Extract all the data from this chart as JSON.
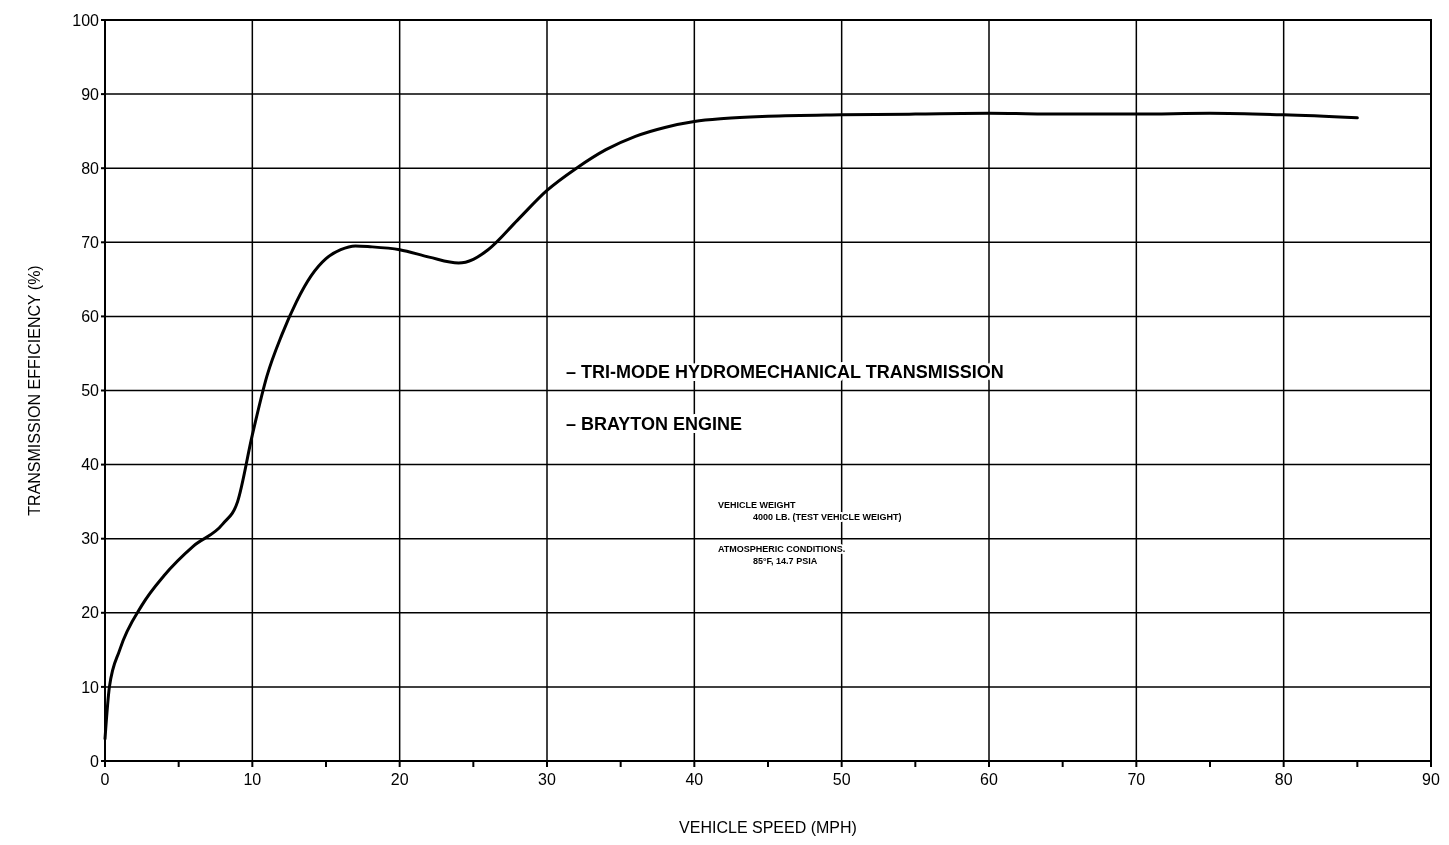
{
  "chart_data": {
    "type": "line",
    "xlabel": "VEHICLE SPEED (MPH)",
    "ylabel": "TRANSMISSION EFFICIENCY (%)",
    "xlim": [
      0,
      90
    ],
    "ylim": [
      0,
      100
    ],
    "xticks": [
      0,
      {
        "value": 5,
        "label": null
      },
      10,
      {
        "value": 15,
        "label": null
      },
      20,
      {
        "value": 25,
        "label": null
      },
      30,
      {
        "value": 35,
        "label": null
      },
      40,
      {
        "value": 45,
        "label": null
      },
      50,
      {
        "value": 55,
        "label": null
      },
      60,
      {
        "value": 65,
        "label": null
      },
      70,
      {
        "value": 75,
        "label": null
      },
      80,
      {
        "value": 85,
        "label": null
      },
      90
    ],
    "yticks": [
      0,
      10,
      20,
      30,
      40,
      50,
      60,
      70,
      80,
      90,
      100
    ],
    "grid": true,
    "line_style": "solid",
    "marker": "none",
    "annotations": [
      "– TRI-MODE HYDROMECHANICAL TRANSMISSION",
      "– BRAYTON ENGINE",
      "VEHICLE WEIGHT",
      "4000 LB. (TEST VEHICLE WEIGHT)",
      "ATMOSPHERIC CONDITIONS.",
      "85°F, 14.7 PSIA"
    ],
    "series": [
      {
        "color": "#000000",
        "x": [
          0,
          0.3,
          1,
          2.5,
          4,
          6,
          8,
          9,
          10,
          11,
          12,
          13,
          14,
          15,
          16,
          17,
          18,
          20,
          22,
          24,
          25,
          26,
          28,
          30,
          32,
          34,
          36,
          38,
          40,
          42,
          45,
          50,
          55,
          60,
          65,
          70,
          75,
          80,
          85
        ],
        "values": [
          3,
          10,
          15,
          21,
          25,
          29,
          32,
          35,
          44,
          52,
          57.5,
          62,
          65.5,
          67.8,
          69,
          69.5,
          69.4,
          69,
          68,
          67.2,
          67.7,
          69,
          73,
          77,
          80,
          82.5,
          84.3,
          85.5,
          86.3,
          86.7,
          87,
          87.2,
          87.3,
          87.4,
          87.3,
          87.3,
          87.4,
          87.2,
          86.8
        ]
      }
    ]
  }
}
